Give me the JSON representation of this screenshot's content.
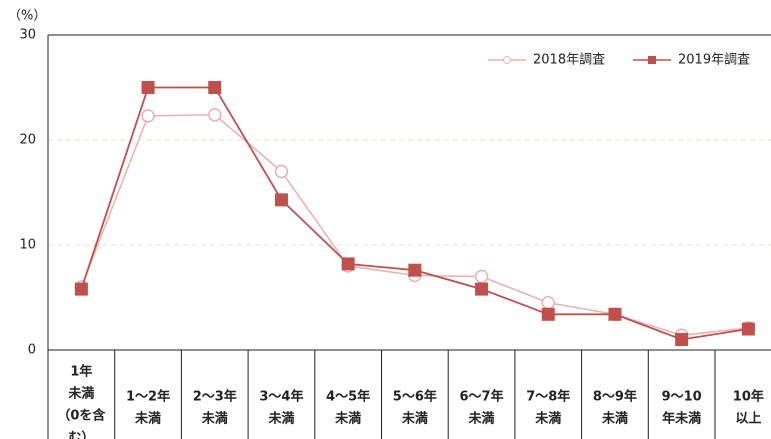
{
  "chart_data": {
    "type": "line",
    "y_axis_label": "（%）",
    "categories": [
      [
        "1年",
        "未満",
        "（0を含",
        "む）"
      ],
      [
        "1〜2年",
        "未満"
      ],
      [
        "2〜3年",
        "未満"
      ],
      [
        "3〜4年",
        "未満"
      ],
      [
        "4〜5年",
        "未満"
      ],
      [
        "5〜6年",
        "未満"
      ],
      [
        "6〜7年",
        "未満"
      ],
      [
        "7〜8年",
        "未満"
      ],
      [
        "8〜9年",
        "未満"
      ],
      [
        "9〜10",
        "年未満"
      ],
      [
        "10年",
        "以上"
      ]
    ],
    "series": [
      {
        "name": "2018年調査",
        "color": "#e8b0b0",
        "marker": "circle",
        "values": [
          6.0,
          22.3,
          22.4,
          17.0,
          8.0,
          7.1,
          7.0,
          4.5,
          3.4,
          1.4,
          2.1
        ]
      },
      {
        "name": "2019年調査",
        "color": "#c0504d",
        "marker": "square",
        "values": [
          5.8,
          25.0,
          25.0,
          14.3,
          8.2,
          7.6,
          5.8,
          3.4,
          3.4,
          1.0,
          2.0
        ]
      }
    ],
    "ylim": [
      0,
      30
    ],
    "yticks": [
      0,
      10,
      20,
      30
    ],
    "grid": true,
    "legend": "top-right"
  }
}
